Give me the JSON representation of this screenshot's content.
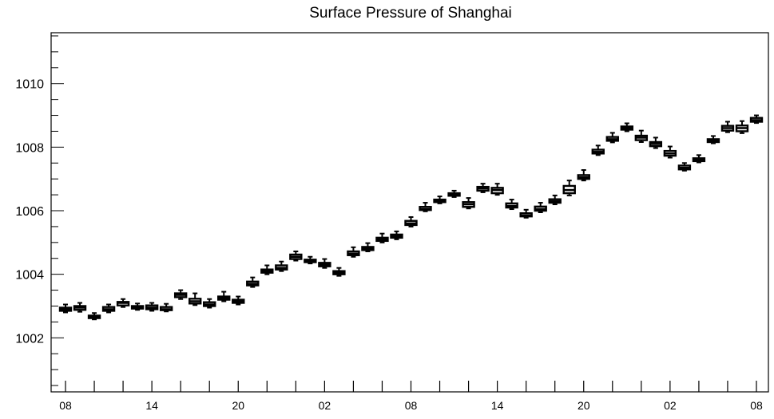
{
  "chart_data": {
    "type": "box",
    "title": "Surface Pressure of Shanghai",
    "xlabel": "",
    "ylabel": "",
    "ylim": [
      1000.3,
      1011.6
    ],
    "yticks": [
      1002,
      1004,
      1006,
      1008,
      1010
    ],
    "ytick_labels": [
      "1002",
      "1004",
      "1006",
      "1008",
      "1010"
    ],
    "x_tick_labels": [
      {
        "index": 0,
        "label": "08"
      },
      {
        "index": 6,
        "label": "14"
      },
      {
        "index": 12,
        "label": "20"
      },
      {
        "index": 18,
        "label": "02"
      },
      {
        "index": 24,
        "label": "08"
      },
      {
        "index": 30,
        "label": "14"
      },
      {
        "index": 36,
        "label": "20"
      },
      {
        "index": 42,
        "label": "02"
      },
      {
        "index": 48,
        "label": "08"
      }
    ],
    "series": [
      {
        "values": [
          1002.9,
          1002.95,
          1002.65,
          1002.9,
          1003.1,
          1002.95,
          1002.95,
          1002.9,
          1003.35,
          1003.15,
          1003.05,
          1003.25,
          1003.15,
          1003.7,
          1004.1,
          1004.2,
          1004.55,
          1004.4,
          1004.3,
          1004.05,
          1004.65,
          1004.8,
          1005.1,
          1005.2,
          1005.6,
          1006.05,
          1006.3,
          1006.5,
          1006.2,
          1006.7,
          1006.65,
          1006.15,
          1005.85,
          1006.05,
          1006.3,
          1006.65,
          1007.05,
          1007.85,
          1008.25,
          1008.6,
          1008.3,
          1008.1,
          1007.8,
          1007.35,
          1007.6,
          1008.2,
          1008.6,
          1008.6,
          1008.85
        ],
        "q1": [
          1002.85,
          1002.88,
          1002.62,
          1002.85,
          1003.02,
          1002.92,
          1002.9,
          1002.87,
          1003.28,
          1003.08,
          1003.0,
          1003.2,
          1003.1,
          1003.65,
          1004.05,
          1004.15,
          1004.48,
          1004.38,
          1004.25,
          1004.0,
          1004.6,
          1004.76,
          1005.05,
          1005.15,
          1005.55,
          1006.02,
          1006.27,
          1006.47,
          1006.12,
          1006.63,
          1006.55,
          1006.1,
          1005.82,
          1006.0,
          1006.25,
          1006.55,
          1007.0,
          1007.8,
          1008.2,
          1008.55,
          1008.22,
          1008.03,
          1007.73,
          1007.3,
          1007.56,
          1008.16,
          1008.52,
          1008.5,
          1008.8
        ],
        "q3": [
          1002.95,
          1003.0,
          1002.7,
          1002.97,
          1003.13,
          1003.0,
          1003.02,
          1002.97,
          1003.4,
          1003.23,
          1003.12,
          1003.3,
          1003.2,
          1003.77,
          1004.15,
          1004.28,
          1004.62,
          1004.46,
          1004.36,
          1004.1,
          1004.72,
          1004.86,
          1005.15,
          1005.25,
          1005.68,
          1006.12,
          1006.35,
          1006.55,
          1006.27,
          1006.75,
          1006.72,
          1006.23,
          1005.92,
          1006.13,
          1006.36,
          1006.78,
          1007.12,
          1007.92,
          1008.32,
          1008.65,
          1008.36,
          1008.16,
          1007.88,
          1007.42,
          1007.65,
          1008.25,
          1008.67,
          1008.68,
          1008.92
        ],
        "min": [
          1002.8,
          1002.82,
          1002.58,
          1002.8,
          1002.97,
          1002.88,
          1002.85,
          1002.83,
          1003.22,
          1003.03,
          1002.95,
          1003.15,
          1003.05,
          1003.6,
          1004.0,
          1004.1,
          1004.43,
          1004.34,
          1004.2,
          1003.95,
          1004.55,
          1004.72,
          1005.0,
          1005.1,
          1005.5,
          1005.98,
          1006.23,
          1006.43,
          1006.07,
          1006.58,
          1006.5,
          1006.05,
          1005.78,
          1005.95,
          1006.2,
          1006.48,
          1006.95,
          1007.75,
          1008.15,
          1008.5,
          1008.16,
          1007.97,
          1007.67,
          1007.26,
          1007.52,
          1008.12,
          1008.47,
          1008.44,
          1008.76
        ],
        "max": [
          1003.05,
          1003.1,
          1002.78,
          1003.05,
          1003.22,
          1003.08,
          1003.1,
          1003.07,
          1003.5,
          1003.4,
          1003.22,
          1003.45,
          1003.3,
          1003.9,
          1004.28,
          1004.4,
          1004.72,
          1004.55,
          1004.48,
          1004.2,
          1004.85,
          1004.98,
          1005.28,
          1005.35,
          1005.8,
          1006.25,
          1006.45,
          1006.63,
          1006.4,
          1006.85,
          1006.85,
          1006.35,
          1006.03,
          1006.25,
          1006.48,
          1006.95,
          1007.28,
          1008.05,
          1008.45,
          1008.75,
          1008.52,
          1008.3,
          1008.02,
          1007.5,
          1007.75,
          1008.35,
          1008.8,
          1008.82,
          1009.0
        ]
      }
    ],
    "grid": false,
    "legend": "none"
  }
}
